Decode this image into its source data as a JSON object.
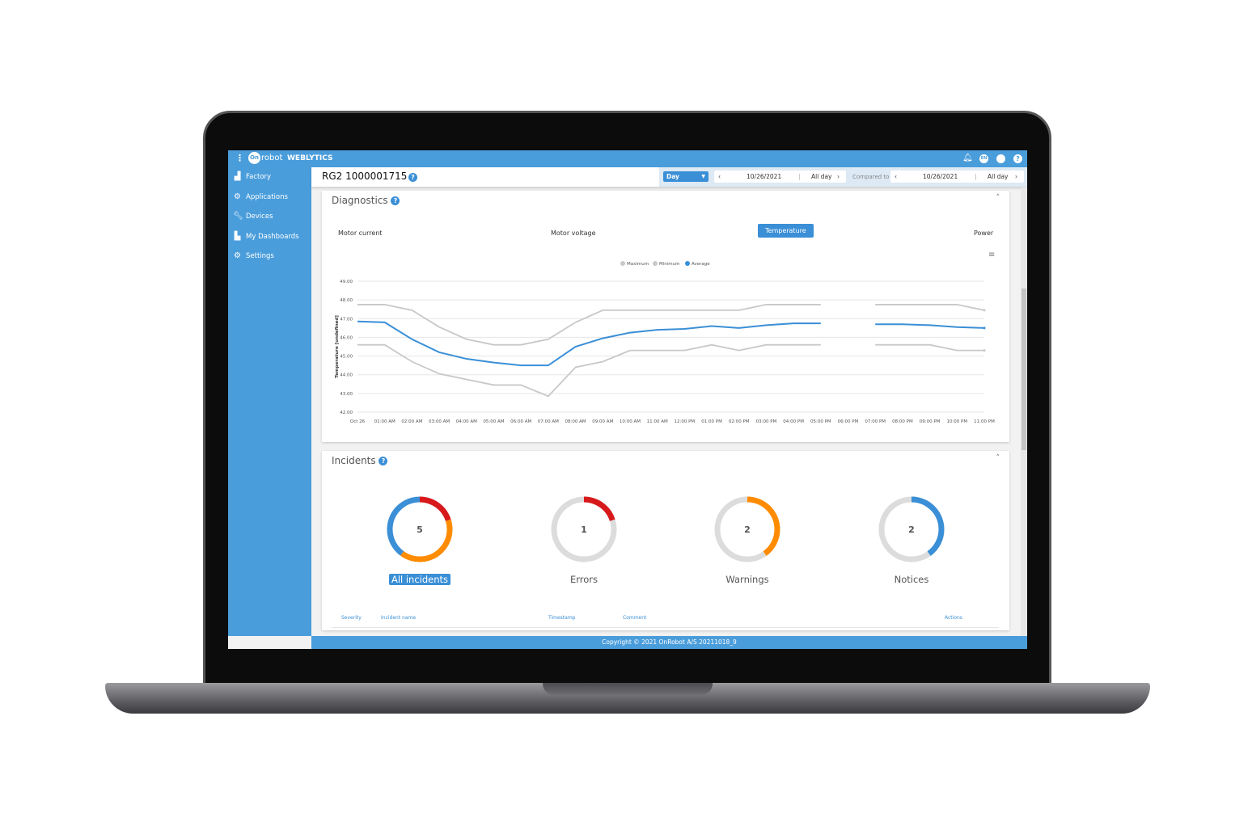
{
  "app": {
    "brand": "robot",
    "brand_mark": "On",
    "product": "WEBLYTICS",
    "icons": [
      "bell-icon",
      "language-icon",
      "user-icon",
      "help-icon"
    ],
    "language": "EN"
  },
  "sidebar": {
    "items": [
      {
        "label": "Factory",
        "icon": "factory-icon"
      },
      {
        "label": "Applications",
        "icon": "robot-arm-icon"
      },
      {
        "label": "Devices",
        "icon": "wrench-icon"
      },
      {
        "label": "My Dashboards",
        "icon": "chart-plus-icon"
      },
      {
        "label": "Settings",
        "icon": "gear-icon"
      }
    ]
  },
  "header": {
    "title": "RG2 1000001715",
    "period": "Day",
    "date": "10/26/2021",
    "range": "All day",
    "compared_label": "Compared to",
    "compare_date": "10/26/2021",
    "compare_range": "All day"
  },
  "diagnostics": {
    "title": "Diagnostics",
    "tabs": [
      "Motor current",
      "Motor voltage",
      "Temperature",
      "Power"
    ],
    "active_tab": "Temperature"
  },
  "chart_data": {
    "type": "line",
    "title": "",
    "xlabel": "",
    "ylabel": "Temperature [undefined]",
    "ylim": [
      42,
      49
    ],
    "yticks": [
      "42.00",
      "43.00",
      "44.00",
      "45.00",
      "46.00",
      "47.00",
      "48.00",
      "49.00"
    ],
    "x": [
      "Oct 26",
      "01:00 AM",
      "02:00 AM",
      "03:00 AM",
      "04:00 AM",
      "05:00 AM",
      "06:00 AM",
      "07:00 AM",
      "08:00 AM",
      "09:00 AM",
      "10:00 AM",
      "11:00 AM",
      "12:00 PM",
      "01:00 PM",
      "02:00 PM",
      "03:00 PM",
      "04:00 PM",
      "05:00 PM",
      "06:00 PM",
      "07:00 PM",
      "08:00 PM",
      "09:00 PM",
      "10:00 PM",
      "11:00 PM"
    ],
    "legend_position": "top-center",
    "grid": true,
    "series": [
      {
        "name": "Maximum",
        "color": "#c8c8c8",
        "values": [
          47.75,
          47.75,
          47.45,
          46.55,
          45.9,
          45.6,
          45.6,
          45.9,
          46.8,
          47.45,
          47.45,
          47.45,
          47.45,
          47.45,
          47.45,
          47.75,
          47.75,
          47.75,
          null,
          47.75,
          47.75,
          47.75,
          47.75,
          47.45
        ]
      },
      {
        "name": "Minimum",
        "color": "#c8c8c8",
        "values": [
          45.6,
          45.6,
          44.7,
          44.05,
          43.75,
          43.45,
          43.45,
          42.85,
          44.4,
          44.7,
          45.3,
          45.3,
          45.3,
          45.6,
          45.3,
          45.6,
          45.6,
          45.6,
          null,
          45.6,
          45.6,
          45.6,
          45.3,
          45.3
        ]
      },
      {
        "name": "Average",
        "color": "#3a8fd6",
        "values": [
          46.85,
          46.8,
          45.9,
          45.2,
          44.85,
          44.65,
          44.5,
          44.5,
          45.5,
          45.95,
          46.25,
          46.4,
          46.45,
          46.6,
          46.5,
          46.65,
          46.75,
          46.75,
          null,
          46.7,
          46.7,
          46.65,
          46.55,
          46.5
        ]
      }
    ]
  },
  "incidents": {
    "title": "Incidents",
    "total": 5,
    "donuts": [
      {
        "label": "All incidents",
        "value": "5",
        "active": true
      },
      {
        "label": "Errors",
        "value": "1"
      },
      {
        "label": "Warnings",
        "value": "2"
      },
      {
        "label": "Notices",
        "value": "2"
      }
    ],
    "colors": {
      "error": "#d7191c",
      "warning": "#ff8c00",
      "notice": "#3a8fd6"
    },
    "columns": [
      "Severity",
      "Incident name",
      "Timestamp",
      "Comment",
      "Actions"
    ]
  },
  "footer": {
    "copyright": "Copyright © 2021 OnRobot A/S  20211018_9"
  }
}
